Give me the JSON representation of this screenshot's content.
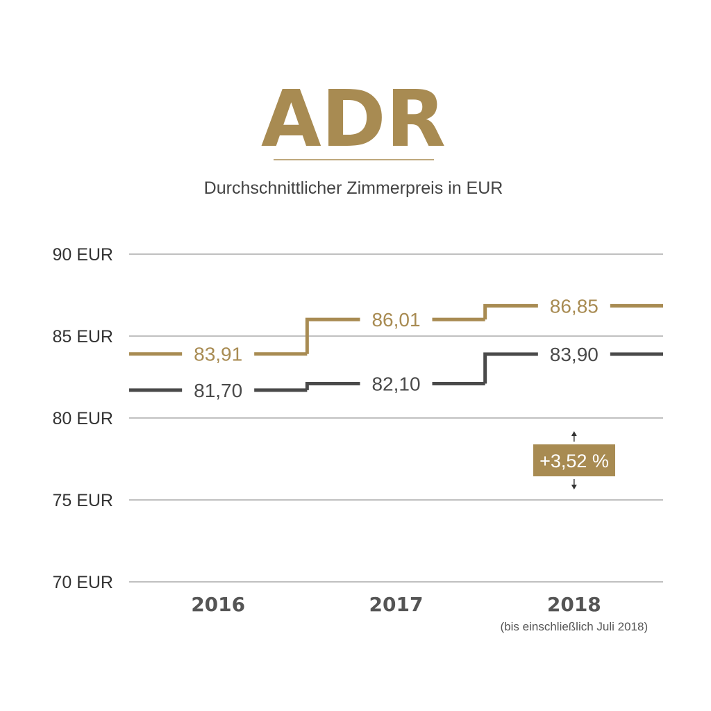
{
  "chart_data": {
    "type": "line",
    "step": true,
    "title": "ADR",
    "subtitle": "Durchschnittlicher Zimmerpreis in EUR",
    "categories": [
      "2016",
      "2017",
      "2018"
    ],
    "category_notes": [
      "",
      "",
      "(bis einschließlich Juli 2018)"
    ],
    "ylim": [
      70,
      90
    ],
    "yticks": [
      90,
      85,
      80,
      75,
      70
    ],
    "ytick_labels": [
      "90 EUR",
      "85 EUR",
      "80 EUR",
      "75 EUR",
      "70 EUR"
    ],
    "grid": true,
    "series": [
      {
        "color": "#a88b52",
        "values": [
          83.91,
          86.01,
          86.85
        ],
        "labels": [
          "83,91",
          "86,01",
          "86,85"
        ]
      },
      {
        "color": "#4a4a4a",
        "values": [
          81.7,
          82.1,
          83.9
        ],
        "labels": [
          "81,70",
          "82,10",
          "83,90"
        ]
      }
    ],
    "annotation": {
      "text": "+3,52 %",
      "color": "#a88b52"
    }
  },
  "colors": {
    "accent": "#a88b52",
    "dark": "#4a4a4a",
    "grid": "#9a9a9a",
    "text": "#444444"
  }
}
